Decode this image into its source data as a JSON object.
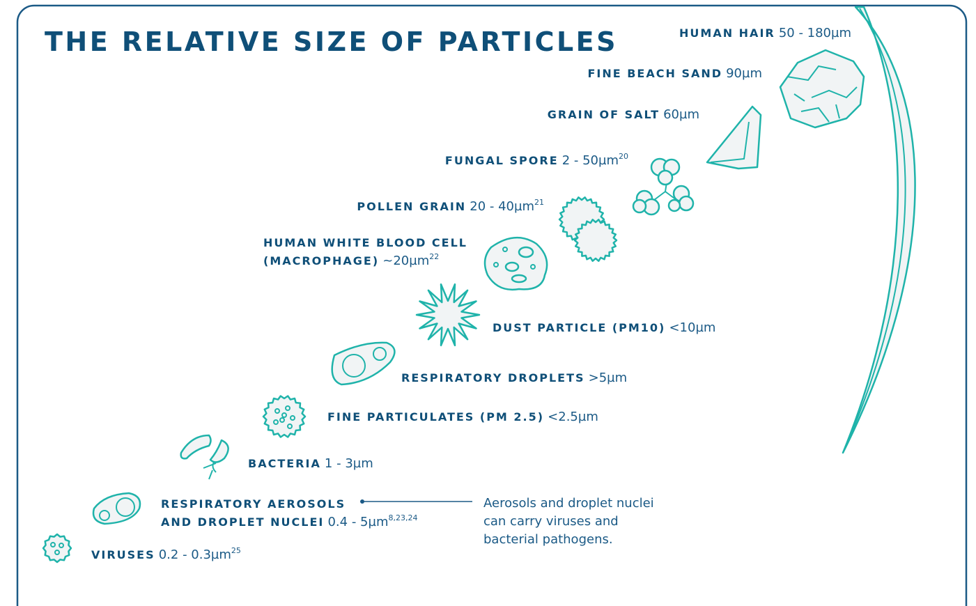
{
  "title": "THE RELATIVE SIZE OF PARTICLES",
  "items": [
    {
      "name": [
        "HUMAN HAIR"
      ],
      "size": "50 - 180µm"
    },
    {
      "name": [
        "FINE BEACH SAND"
      ],
      "size": "90µm"
    },
    {
      "name": [
        "GRAIN OF SALT"
      ],
      "size": "60µm"
    },
    {
      "name": [
        "FUNGAL SPORE"
      ],
      "size": "2 - 50µm",
      "ref": "20"
    },
    {
      "name": [
        "POLLEN GRAIN"
      ],
      "size": "20 - 40µm",
      "ref": "21"
    },
    {
      "name": [
        "HUMAN WHITE BLOOD CELL",
        "(MACROPHAGE)"
      ],
      "size": "~20µm",
      "ref": "22"
    },
    {
      "name": [
        "DUST PARTICLE (PM10)"
      ],
      "size": "<10µm"
    },
    {
      "name": [
        "RESPIRATORY DROPLETS"
      ],
      "size": ">5µm"
    },
    {
      "name": [
        "FINE PARTICULATES (PM 2.5)"
      ],
      "size": "<2.5µm"
    },
    {
      "name": [
        "BACTERIA"
      ],
      "size": "1 - 3µm"
    },
    {
      "name": [
        "RESPIRATORY AEROSOLS",
        "AND DROPLET NUCLEI"
      ],
      "size": "0.4 - 5µm",
      "ref": "8,23,24"
    },
    {
      "name": [
        "VIRUSES"
      ],
      "size": "0.2 - 0.3µm",
      "ref": "25"
    }
  ],
  "note": [
    "Aerosols and droplet nuclei",
    "can carry viruses and",
    "bacterial pathogens."
  ]
}
